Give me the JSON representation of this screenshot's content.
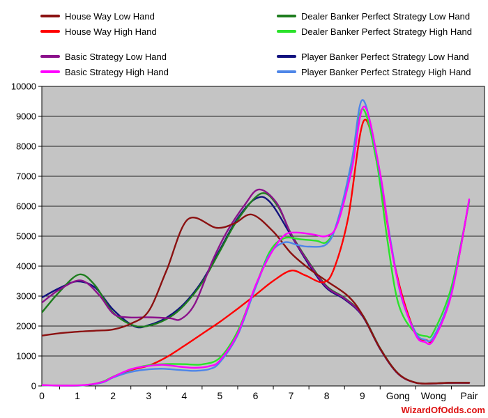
{
  "watermark": {
    "label": "WizardOfOdds.com",
    "color": "#DD1111"
  },
  "legend": {
    "columns": [
      {
        "items": [
          {
            "label": "House Way Low Hand",
            "color": "#8B1111"
          },
          {
            "label": "House Way High Hand",
            "color": "#FF0000"
          },
          {
            "label": "Basic Strategy Low Hand",
            "color": "#8B118B"
          },
          {
            "label": "Basic Strategy High Hand",
            "color": "#FF00FF"
          }
        ]
      },
      {
        "items": [
          {
            "label": "Dealer Banker Perfect Strategy Low Hand",
            "color": "#1E7D1E"
          },
          {
            "label": "Dealer Banker Perfect Strategy High Hand",
            "color": "#2BE22B"
          },
          {
            "label": "Player Banker Perfect Strategy Low Hand",
            "color": "#12127E"
          },
          {
            "label": "Player Banker Perfect Strategy High Hand",
            "color": "#4E86E8"
          }
        ]
      }
    ]
  },
  "chart_data": {
    "type": "line",
    "title": "",
    "xlabel": "",
    "ylabel": "",
    "categories": [
      "0",
      "1",
      "2",
      "3",
      "4",
      "5",
      "6",
      "7",
      "8",
      "9",
      "Gong",
      "Wong",
      "Pair"
    ],
    "yticks": [
      0,
      1000,
      2000,
      3000,
      4000,
      5000,
      6000,
      7000,
      8000,
      9000,
      10000
    ],
    "ylim": [
      0,
      10000
    ],
    "grid": true,
    "legend_position": "top",
    "plot_bg": "#C4C4C4",
    "series": [
      {
        "name": "Player Banker Perfect Strategy Low Hand",
        "color": "#12127E",
        "points": [
          [
            0,
            2950
          ],
          [
            0.5,
            3270
          ],
          [
            1,
            3490
          ],
          [
            1.5,
            3280
          ],
          [
            2,
            2550
          ],
          [
            2.6,
            1990
          ],
          [
            3,
            2030
          ],
          [
            3.5,
            2280
          ],
          [
            4,
            2750
          ],
          [
            4.5,
            3500
          ],
          [
            5,
            4550
          ],
          [
            5.5,
            5600
          ],
          [
            6,
            6250
          ],
          [
            6.4,
            6150
          ],
          [
            7,
            5020
          ],
          [
            7.5,
            4050
          ],
          [
            8,
            3260
          ],
          [
            8.5,
            2890
          ],
          [
            9,
            2340
          ],
          [
            9.5,
            1230
          ],
          [
            10,
            410
          ],
          [
            10.5,
            106
          ],
          [
            11,
            82
          ],
          [
            11.4,
            102
          ],
          [
            12,
            102
          ]
        ]
      },
      {
        "name": "Dealer Banker Perfect Strategy Low Hand",
        "color": "#1E7D1E",
        "points": [
          [
            0,
            2450
          ],
          [
            0.5,
            3150
          ],
          [
            1.05,
            3720
          ],
          [
            1.5,
            3350
          ],
          [
            2,
            2450
          ],
          [
            2.6,
            2010
          ],
          [
            3.1,
            2040
          ],
          [
            3.6,
            2300
          ],
          [
            4,
            2700
          ],
          [
            4.5,
            3450
          ],
          [
            5,
            4500
          ],
          [
            5.5,
            5550
          ],
          [
            6.15,
            6420
          ],
          [
            6.6,
            6050
          ],
          [
            7,
            5080
          ],
          [
            7.5,
            4130
          ],
          [
            8,
            3330
          ],
          [
            8.5,
            2940
          ],
          [
            9,
            2380
          ],
          [
            9.5,
            1260
          ],
          [
            10,
            425
          ],
          [
            10.5,
            112
          ],
          [
            11,
            87
          ],
          [
            11.4,
            107
          ],
          [
            12,
            107
          ]
        ]
      },
      {
        "name": "Basic Strategy Low Hand",
        "color": "#8B118B",
        "points": [
          [
            0,
            2780
          ],
          [
            0.5,
            3220
          ],
          [
            1.1,
            3520
          ],
          [
            1.6,
            3050
          ],
          [
            2,
            2420
          ],
          [
            2.4,
            2290
          ],
          [
            3,
            2290
          ],
          [
            3.6,
            2260
          ],
          [
            3.9,
            2230
          ],
          [
            4.3,
            2750
          ],
          [
            4.8,
            4200
          ],
          [
            5.2,
            5150
          ],
          [
            5.7,
            6050
          ],
          [
            6.1,
            6560
          ],
          [
            6.6,
            6100
          ],
          [
            7,
            5060
          ],
          [
            7.5,
            4100
          ],
          [
            8,
            3300
          ],
          [
            8.5,
            2920
          ],
          [
            9,
            2360
          ],
          [
            9.5,
            1240
          ],
          [
            10,
            415
          ],
          [
            10.5,
            108
          ],
          [
            11,
            83
          ],
          [
            11.4,
            103
          ],
          [
            12,
            103
          ]
        ]
      },
      {
        "name": "House Way Low Hand",
        "color": "#8B1111",
        "points": [
          [
            0,
            1680
          ],
          [
            0.5,
            1760
          ],
          [
            1,
            1810
          ],
          [
            1.5,
            1845
          ],
          [
            2,
            1885
          ],
          [
            2.5,
            2080
          ],
          [
            3,
            2500
          ],
          [
            3.5,
            3850
          ],
          [
            4.1,
            5560
          ],
          [
            4.9,
            5280
          ],
          [
            5.4,
            5420
          ],
          [
            5.9,
            5720
          ],
          [
            6.5,
            5150
          ],
          [
            7,
            4430
          ],
          [
            7.5,
            3920
          ],
          [
            8,
            3500
          ],
          [
            8.6,
            3000
          ],
          [
            9,
            2380
          ],
          [
            9.5,
            1250
          ],
          [
            10,
            420
          ],
          [
            10.5,
            110
          ],
          [
            11,
            85
          ],
          [
            11.4,
            105
          ],
          [
            12,
            105
          ]
        ]
      },
      {
        "name": "House Way High Hand",
        "color": "#FF0000",
        "points": [
          [
            0,
            25
          ],
          [
            0.6,
            12
          ],
          [
            1.2,
            25
          ],
          [
            1.7,
            120
          ],
          [
            2,
            300
          ],
          [
            2.5,
            530
          ],
          [
            3,
            680
          ],
          [
            3.5,
            960
          ],
          [
            4,
            1340
          ],
          [
            4.5,
            1740
          ],
          [
            5,
            2140
          ],
          [
            5.5,
            2580
          ],
          [
            6,
            3040
          ],
          [
            6.5,
            3510
          ],
          [
            7,
            3850
          ],
          [
            7.4,
            3690
          ],
          [
            7.9,
            3460
          ],
          [
            8.2,
            3900
          ],
          [
            8.6,
            5600
          ],
          [
            9.05,
            8870
          ],
          [
            9.5,
            6900
          ],
          [
            9.8,
            4700
          ],
          [
            10.1,
            3100
          ],
          [
            10.5,
            1750
          ],
          [
            10.8,
            1530
          ],
          [
            11,
            1600
          ],
          [
            11.5,
            3100
          ],
          [
            12,
            6180
          ]
        ]
      },
      {
        "name": "Dealer Banker Perfect Strategy High Hand",
        "color": "#2BE22B",
        "points": [
          [
            0,
            20
          ],
          [
            0.6,
            10
          ],
          [
            1.2,
            20
          ],
          [
            1.7,
            140
          ],
          [
            2,
            310
          ],
          [
            2.5,
            550
          ],
          [
            3,
            690
          ],
          [
            3.5,
            730
          ],
          [
            4,
            728
          ],
          [
            4.5,
            720
          ],
          [
            5,
            940
          ],
          [
            5.5,
            1830
          ],
          [
            6,
            3320
          ],
          [
            6.4,
            4480
          ],
          [
            6.8,
            4930
          ],
          [
            7.3,
            4890
          ],
          [
            7.7,
            4850
          ],
          [
            8,
            4810
          ],
          [
            8.3,
            5450
          ],
          [
            8.7,
            7300
          ],
          [
            9,
            9250
          ],
          [
            9.4,
            7500
          ],
          [
            9.7,
            4900
          ],
          [
            10,
            2800
          ],
          [
            10.4,
            1880
          ],
          [
            10.8,
            1660
          ],
          [
            11,
            1800
          ],
          [
            11.5,
            3300
          ],
          [
            12,
            6150
          ]
        ]
      },
      {
        "name": "Player Banker Perfect Strategy High Hand",
        "color": "#4E86E8",
        "points": [
          [
            0,
            25
          ],
          [
            0.6,
            12
          ],
          [
            1.2,
            25
          ],
          [
            1.7,
            115
          ],
          [
            2,
            280
          ],
          [
            2.5,
            470
          ],
          [
            3,
            555
          ],
          [
            3.4,
            575
          ],
          [
            3.9,
            530
          ],
          [
            4.3,
            505
          ],
          [
            4.7,
            560
          ],
          [
            5,
            790
          ],
          [
            5.5,
            1700
          ],
          [
            6,
            3280
          ],
          [
            6.4,
            4400
          ],
          [
            6.8,
            4790
          ],
          [
            7.2,
            4700
          ],
          [
            7.5,
            4650
          ],
          [
            8,
            4740
          ],
          [
            8.3,
            5500
          ],
          [
            8.7,
            7500
          ],
          [
            9,
            9550
          ],
          [
            9.4,
            7700
          ],
          [
            9.8,
            4800
          ],
          [
            10.1,
            2950
          ],
          [
            10.5,
            1780
          ],
          [
            10.75,
            1550
          ],
          [
            11,
            1640
          ],
          [
            11.5,
            3120
          ],
          [
            12,
            6200
          ]
        ]
      },
      {
        "name": "Basic Strategy High Hand",
        "color": "#FF00FF",
        "points": [
          [
            0,
            30
          ],
          [
            0.6,
            15
          ],
          [
            1.2,
            30
          ],
          [
            1.7,
            130
          ],
          [
            2,
            300
          ],
          [
            2.5,
            560
          ],
          [
            3,
            670
          ],
          [
            3.4,
            705
          ],
          [
            3.9,
            640
          ],
          [
            4.3,
            605
          ],
          [
            4.7,
            660
          ],
          [
            5,
            850
          ],
          [
            5.5,
            1750
          ],
          [
            6,
            3350
          ],
          [
            6.4,
            4350
          ],
          [
            6.8,
            5020
          ],
          [
            7.15,
            5120
          ],
          [
            7.6,
            5060
          ],
          [
            8,
            5010
          ],
          [
            8.3,
            5400
          ],
          [
            8.7,
            7200
          ],
          [
            9.05,
            9330
          ],
          [
            9.5,
            7100
          ],
          [
            9.8,
            4700
          ],
          [
            10.1,
            3000
          ],
          [
            10.5,
            1700
          ],
          [
            10.75,
            1470
          ],
          [
            11,
            1540
          ],
          [
            11.5,
            3050
          ],
          [
            12,
            6230
          ]
        ]
      }
    ]
  }
}
